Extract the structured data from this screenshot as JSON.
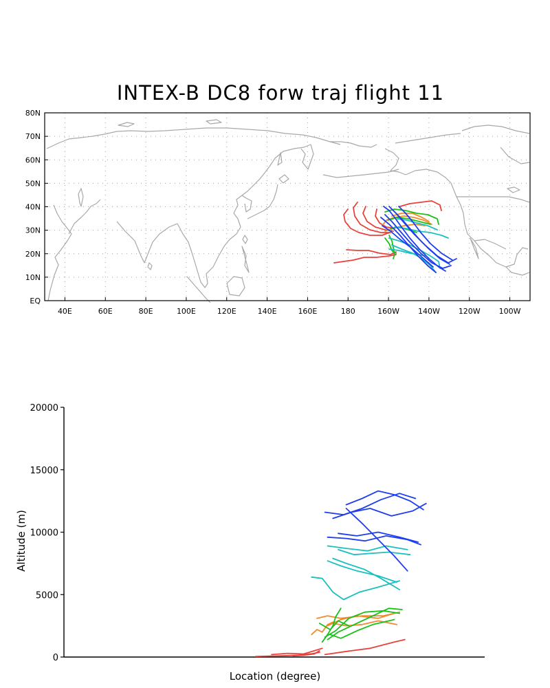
{
  "title": "INTEX-B DC8 forw traj flight 11",
  "colors": {
    "coast": "#a8a8a8",
    "grid": "#a0a0a0",
    "red": "#e8413c",
    "orange": "#f08a2c",
    "green": "#18c018",
    "cyan": "#18c0c0",
    "blue": "#1e3cf0"
  },
  "map": {
    "lat_labels": [
      "80N",
      "70N",
      "60N",
      "50N",
      "40N",
      "30N",
      "20N",
      "10N",
      "EQ"
    ],
    "lon_labels": [
      "40E",
      "60E",
      "80E",
      "100E",
      "120E",
      "140E",
      "160E",
      "180",
      "160W",
      "140W",
      "120W",
      "100W"
    ],
    "extent": {
      "lon": [
        30,
        270
      ],
      "lat": [
        0,
        80
      ]
    }
  },
  "chart_data": {
    "type": "line",
    "title": "",
    "xlabel": "Location (degree)",
    "ylabel": "Altitude (m)",
    "ylim": [
      0,
      20000
    ],
    "yticks": [
      0,
      5000,
      10000,
      15000,
      20000
    ],
    "ytick_labels": [
      "0",
      "5000",
      "10000",
      "15000",
      "20000"
    ],
    "series": [
      {
        "color": "red",
        "x": [
          172,
          180,
          188,
          193,
          196
        ],
        "y": [
          50,
          90,
          150,
          260,
          380
        ]
      },
      {
        "color": "red",
        "x": [
          178,
          184,
          190,
          194,
          197
        ],
        "y": [
          200,
          300,
          250,
          500,
          700
        ]
      },
      {
        "color": "red",
        "x": [
          186,
          190,
          194,
          196
        ],
        "y": [
          100,
          150,
          250,
          500
        ]
      },
      {
        "color": "red",
        "x": [
          198,
          207,
          215,
          224,
          228
        ],
        "y": [
          200,
          480,
          700,
          1200,
          1400
        ]
      },
      {
        "color": "orange",
        "x": [
          193,
          195,
          197,
          199,
          201
        ],
        "y": [
          1800,
          2200,
          2000,
          2600,
          2800
        ]
      },
      {
        "color": "orange",
        "x": [
          199,
          204,
          210,
          218,
          224
        ],
        "y": [
          2500,
          3000,
          3300,
          3100,
          3500
        ]
      },
      {
        "color": "orange",
        "x": [
          201,
          206,
          212,
          218,
          225
        ],
        "y": [
          2700,
          2500,
          2600,
          2900,
          2600
        ]
      },
      {
        "color": "orange",
        "x": [
          195,
          199,
          204,
          212,
          220,
          226
        ],
        "y": [
          3100,
          3300,
          3100,
          3300,
          3300,
          3600
        ]
      },
      {
        "color": "green",
        "x": [
          197,
          199,
          201,
          202,
          204
        ],
        "y": [
          1200,
          1800,
          2500,
          3200,
          3900
        ]
      },
      {
        "color": "green",
        "x": [
          198,
          202,
          207,
          213,
          220,
          226
        ],
        "y": [
          1600,
          2100,
          3100,
          3600,
          3700,
          3500
        ]
      },
      {
        "color": "green",
        "x": [
          199,
          203,
          209,
          215,
          222,
          227
        ],
        "y": [
          1400,
          2000,
          2600,
          3200,
          3900,
          3800
        ]
      },
      {
        "color": "green",
        "x": [
          196,
          200,
          203,
          207
        ],
        "y": [
          2700,
          2200,
          2900,
          2500
        ]
      },
      {
        "color": "green",
        "x": [
          200,
          204,
          210,
          216,
          224
        ],
        "y": [
          1800,
          1500,
          2100,
          2600,
          3000
        ]
      },
      {
        "color": "cyan",
        "x": [
          193,
          197,
          201,
          205,
          211,
          218,
          226
        ],
        "y": [
          6400,
          6300,
          5200,
          4600,
          5200,
          5600,
          6100
        ]
      },
      {
        "color": "cyan",
        "x": [
          199,
          204,
          210,
          218,
          225
        ],
        "y": [
          7700,
          7300,
          6900,
          6500,
          6000
        ]
      },
      {
        "color": "cyan",
        "x": [
          201,
          206,
          213,
          219,
          226
        ],
        "y": [
          7900,
          7500,
          7000,
          6300,
          5400
        ]
      },
      {
        "color": "cyan",
        "x": [
          199,
          206,
          214,
          221,
          229
        ],
        "y": [
          8900,
          8700,
          8500,
          8900,
          8600
        ]
      },
      {
        "color": "cyan",
        "x": [
          203,
          209,
          215,
          222,
          230
        ],
        "y": [
          8600,
          8200,
          8300,
          8400,
          8200
        ]
      },
      {
        "color": "blue",
        "x": [
          198,
          205,
          212,
          219,
          226,
          232
        ],
        "y": [
          11600,
          11400,
          11900,
          12600,
          13100,
          12700
        ]
      },
      {
        "color": "blue",
        "x": [
          201,
          208,
          215,
          223,
          231,
          236
        ],
        "y": [
          11100,
          11600,
          11900,
          11300,
          11700,
          12300
        ]
      },
      {
        "color": "blue",
        "x": [
          206,
          212,
          218,
          224,
          230,
          235
        ],
        "y": [
          12200,
          12700,
          13300,
          13000,
          12500,
          11800
        ]
      },
      {
        "color": "blue",
        "x": [
          199,
          206,
          213,
          221,
          229,
          234
        ],
        "y": [
          9600,
          9500,
          9300,
          9700,
          9400,
          9000
        ]
      },
      {
        "color": "blue",
        "x": [
          203,
          210,
          218,
          226,
          233
        ],
        "y": [
          9900,
          9700,
          10000,
          9600,
          9200
        ]
      },
      {
        "color": "blue",
        "x": [
          206,
          212,
          218,
          224,
          229
        ],
        "y": [
          11900,
          10700,
          9400,
          8100,
          6900
        ]
      }
    ]
  }
}
